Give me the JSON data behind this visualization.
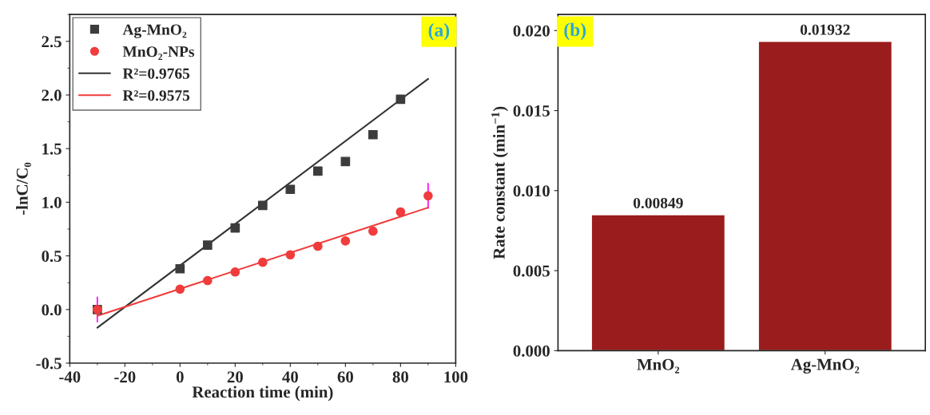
{
  "chart_data": [
    {
      "type": "scatter",
      "xlabel": "Reaction time (min)",
      "ylabel": "-lnC/C₀",
      "xlim": [
        -40,
        100
      ],
      "ylim": [
        -0.5,
        2.75
      ],
      "xticks": [
        -40,
        -20,
        0,
        20,
        40,
        60,
        80,
        100
      ],
      "yticks": [
        -0.5,
        {
          "value": 0,
          "label": "0.0"
        },
        0.5,
        {
          "value": 1,
          "label": "1.0"
        },
        1.5,
        {
          "value": 2,
          "label": "2.0"
        },
        2.5
      ],
      "grid": false,
      "legend": "top left",
      "annotations": [
        "(a)"
      ],
      "series": [
        {
          "name": "Ag-MnO₂",
          "type": "scatter",
          "marker": "square",
          "color": "#3c3c3c",
          "x": [
            -30,
            0,
            10,
            20,
            30,
            40,
            50,
            60,
            70,
            80
          ],
          "values": [
            0.0,
            0.38,
            0.6,
            0.76,
            0.97,
            1.12,
            1.29,
            1.38,
            1.63,
            1.96
          ]
        },
        {
          "name": "MnO₂-NPs",
          "type": "scatter",
          "marker": "circle",
          "color": "#f03c3c",
          "x": [
            -30,
            0,
            10,
            20,
            30,
            40,
            50,
            60,
            70,
            80,
            90
          ],
          "values": [
            0.0,
            0.19,
            0.27,
            0.35,
            0.44,
            0.51,
            0.59,
            0.64,
            0.73,
            0.91,
            1.06
          ],
          "errors": [
            0.12,
            null,
            null,
            null,
            null,
            null,
            null,
            null,
            null,
            null,
            0.12
          ]
        },
        {
          "name": "R²=0.9765",
          "type": "line",
          "color": "#333333",
          "x": [
            -30,
            90
          ],
          "values": [
            -0.17,
            2.15
          ]
        },
        {
          "name": "R²=0.9575",
          "type": "line",
          "color": "#f03c3c",
          "x": [
            -30,
            90
          ],
          "values": [
            -0.06,
            0.95
          ]
        }
      ]
    },
    {
      "type": "bar",
      "ylabel": "Rate constant (min$^{−1}$)",
      "categories": [
        "MnO₂",
        "Ag-MnO₂"
      ],
      "values": [
        0.00849,
        0.01932
      ],
      "colors": [
        "#9a1c1c",
        "#9a1c1c"
      ],
      "ylim": [
        0,
        0.021
      ],
      "yticks": [
        {
          "value": 0,
          "label": "0.000"
        },
        {
          "value": 0.005,
          "label": "0.005"
        },
        {
          "value": 0.01,
          "label": "0.010"
        },
        {
          "value": 0.015,
          "label": "0.015"
        },
        {
          "value": 0.02,
          "label": "0.020"
        }
      ],
      "data_labels": true,
      "grid": false,
      "annotations": [
        "(b)"
      ]
    }
  ]
}
